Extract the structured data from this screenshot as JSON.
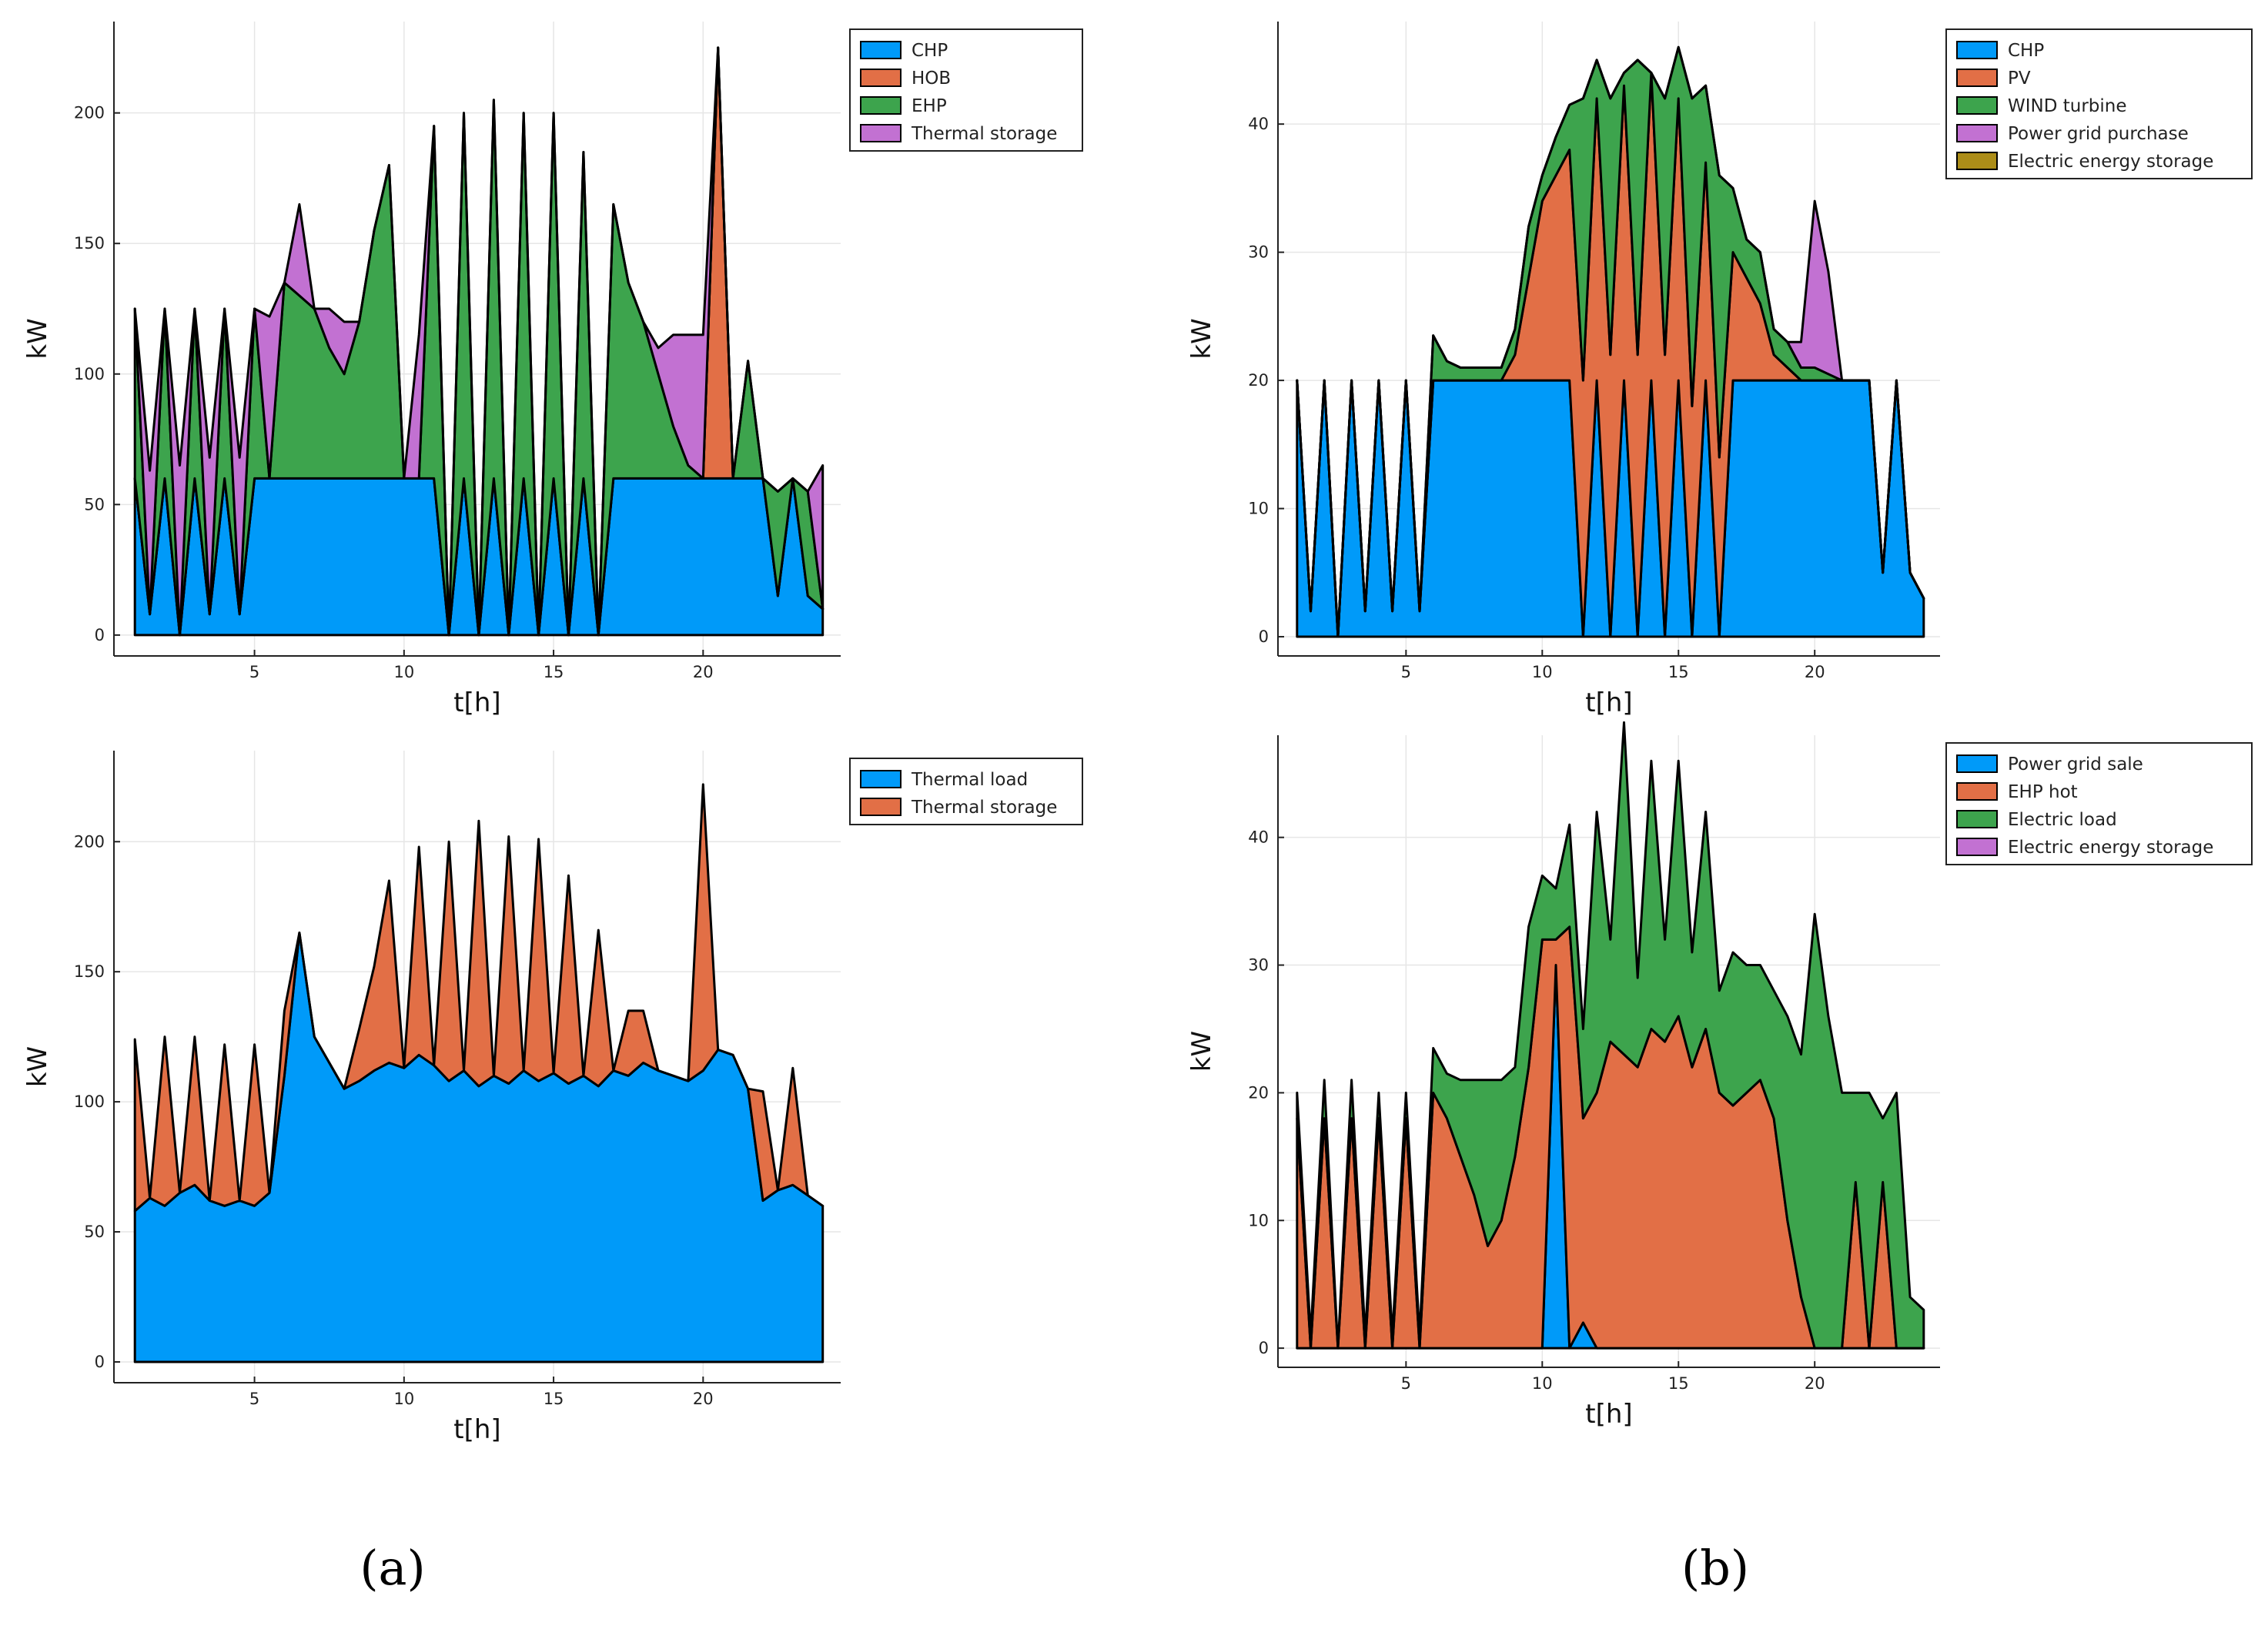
{
  "chart_data": [
    {
      "id": "a-top",
      "type": "area",
      "stacked": true,
      "title": "",
      "xlabel": "t[h]",
      "ylabel": "kW",
      "xlim": [
        0.3,
        24.6
      ],
      "ylim": [
        -8,
        235
      ],
      "xticks": [
        5,
        10,
        15,
        20
      ],
      "yticks": [
        0,
        50,
        100,
        150,
        200
      ],
      "grid": true,
      "legend_position": "top-right",
      "x": [
        1,
        1.5,
        2,
        2.5,
        3,
        3.5,
        4,
        4.5,
        5,
        5.5,
        6,
        6.5,
        7,
        7.5,
        8,
        8.5,
        9,
        9.5,
        10,
        10.5,
        11,
        11.5,
        12,
        12.5,
        13,
        13.5,
        14,
        14.5,
        15,
        15.5,
        16,
        16.5,
        17,
        17.5,
        18,
        18.5,
        19,
        19.5,
        20,
        20.5,
        21,
        21.5,
        22,
        22.5,
        23,
        23.5,
        24
      ],
      "series": [
        {
          "name": "CHP",
          "color": "#009af9",
          "values": [
            60,
            8,
            60,
            0,
            60,
            8,
            60,
            8,
            60,
            60,
            60,
            60,
            60,
            60,
            60,
            60,
            60,
            60,
            60,
            60,
            60,
            0,
            60,
            0,
            60,
            0,
            60,
            0,
            60,
            0,
            60,
            0,
            60,
            60,
            60,
            60,
            60,
            60,
            60,
            60,
            60,
            60,
            60,
            15,
            60,
            15,
            10
          ]
        },
        {
          "name": "HOB",
          "color": "#e26f46",
          "values": [
            0,
            0,
            0,
            0,
            0,
            0,
            0,
            0,
            0,
            0,
            0,
            0,
            0,
            0,
            0,
            0,
            0,
            0,
            0,
            0,
            0,
            0,
            0,
            0,
            0,
            0,
            0,
            0,
            0,
            0,
            0,
            0,
            0,
            0,
            0,
            0,
            0,
            0,
            0,
            165,
            0,
            0,
            0,
            0,
            0,
            0,
            0
          ]
        },
        {
          "name": "EHP",
          "color": "#3da44d",
          "values": [
            65,
            0,
            65,
            0,
            65,
            0,
            65,
            0,
            65,
            0,
            75,
            70,
            65,
            50,
            40,
            60,
            95,
            120,
            0,
            0,
            135,
            0,
            140,
            0,
            145,
            0,
            140,
            0,
            140,
            0,
            125,
            0,
            105,
            75,
            60,
            40,
            20,
            5,
            0,
            0,
            0,
            45,
            0,
            40,
            0,
            40,
            0
          ]
        },
        {
          "name": "Thermal storage",
          "color": "#c271d2",
          "values": [
            0,
            55,
            0,
            65,
            0,
            60,
            0,
            60,
            0,
            62,
            0,
            35,
            0,
            15,
            20,
            0,
            0,
            0,
            0,
            55,
            0,
            0,
            0,
            0,
            0,
            0,
            0,
            0,
            0,
            0,
            0,
            0,
            0,
            0,
            0,
            10,
            35,
            50,
            55,
            0,
            0,
            0,
            0,
            0,
            0,
            0,
            55
          ]
        }
      ]
    },
    {
      "id": "a-bottom",
      "type": "area",
      "stacked": true,
      "title": "",
      "xlabel": "t[h]",
      "ylabel": "kW",
      "xlim": [
        0.3,
        24.6
      ],
      "ylim": [
        -8,
        235
      ],
      "xticks": [
        5,
        10,
        15,
        20
      ],
      "yticks": [
        0,
        50,
        100,
        150,
        200
      ],
      "grid": true,
      "legend_position": "top-right",
      "x": [
        1,
        1.5,
        2,
        2.5,
        3,
        3.5,
        4,
        4.5,
        5,
        5.5,
        6,
        6.5,
        7,
        7.5,
        8,
        8.5,
        9,
        9.5,
        10,
        10.5,
        11,
        11.5,
        12,
        12.5,
        13,
        13.5,
        14,
        14.5,
        15,
        15.5,
        16,
        16.5,
        17,
        17.5,
        18,
        18.5,
        19,
        19.5,
        20,
        20.5,
        21,
        21.5,
        22,
        22.5,
        23,
        23.5,
        24
      ],
      "series": [
        {
          "name": "Thermal load",
          "color": "#009af9",
          "values": [
            58,
            63,
            60,
            65,
            68,
            62,
            60,
            62,
            60,
            65,
            110,
            165,
            125,
            115,
            105,
            108,
            112,
            115,
            113,
            118,
            114,
            108,
            112,
            106,
            110,
            107,
            112,
            108,
            111,
            107,
            110,
            106,
            112,
            110,
            115,
            112,
            110,
            108,
            112,
            120,
            118,
            105,
            62,
            66,
            68,
            64,
            60
          ]
        },
        {
          "name": "Thermal storage",
          "color": "#e26f46",
          "values": [
            66,
            0,
            65,
            0,
            57,
            0,
            62,
            0,
            62,
            0,
            25,
            0,
            0,
            0,
            0,
            20,
            40,
            70,
            0,
            80,
            0,
            92,
            0,
            102,
            0,
            95,
            0,
            93,
            0,
            80,
            0,
            60,
            0,
            25,
            20,
            0,
            0,
            0,
            110,
            0,
            0,
            0,
            42,
            0,
            45,
            0,
            0
          ]
        }
      ]
    },
    {
      "id": "b-top",
      "type": "area",
      "stacked": true,
      "title": "",
      "xlabel": "t[h]",
      "ylabel": "kW",
      "xlim": [
        0.3,
        24.6
      ],
      "ylim": [
        -1.5,
        48
      ],
      "xticks": [
        5,
        10,
        15,
        20
      ],
      "yticks": [
        0,
        10,
        20,
        30,
        40
      ],
      "grid": true,
      "legend_position": "top-right",
      "x": [
        1,
        1.5,
        2,
        2.5,
        3,
        3.5,
        4,
        4.5,
        5,
        5.5,
        6,
        6.5,
        7,
        7.5,
        8,
        8.5,
        9,
        9.5,
        10,
        10.5,
        11,
        11.5,
        12,
        12.5,
        13,
        13.5,
        14,
        14.5,
        15,
        15.5,
        16,
        16.5,
        17,
        17.5,
        18,
        18.5,
        19,
        19.5,
        20,
        20.5,
        21,
        21.5,
        22,
        22.5,
        23,
        23.5,
        24
      ],
      "series": [
        {
          "name": "CHP",
          "color": "#009af9",
          "values": [
            20,
            2,
            20,
            0,
            20,
            2,
            20,
            2,
            20,
            2,
            20,
            20,
            20,
            20,
            20,
            20,
            20,
            20,
            20,
            20,
            20,
            0,
            20,
            0,
            20,
            0,
            20,
            0,
            20,
            0,
            20,
            0,
            20,
            20,
            20,
            20,
            20,
            20,
            20,
            20,
            20,
            20,
            20,
            5,
            20,
            5,
            3
          ]
        },
        {
          "name": "PV",
          "color": "#e26f46",
          "values": [
            0,
            0,
            0,
            0,
            0,
            0,
            0,
            0,
            0,
            0,
            0,
            0,
            0,
            0,
            0,
            0,
            2,
            8,
            14,
            16,
            18,
            20,
            22,
            22,
            23,
            22,
            24,
            22,
            22,
            18,
            17,
            14,
            10,
            8,
            6,
            2,
            1,
            0,
            0,
            0,
            0,
            0,
            0,
            0,
            0,
            0,
            0
          ]
        },
        {
          "name": "WIND turbine",
          "color": "#3da44d",
          "values": [
            0,
            0,
            0,
            0,
            0,
            0,
            0,
            0,
            0,
            0,
            3.5,
            1.5,
            1,
            1,
            1,
            1,
            2,
            4,
            2,
            3,
            3.5,
            22,
            3,
            20,
            1,
            23,
            0,
            20,
            4,
            24,
            6,
            22,
            5,
            3,
            4,
            2,
            2,
            1,
            1,
            0.5,
            0,
            0,
            0,
            0,
            0,
            0,
            0
          ]
        },
        {
          "name": "Power grid purchase",
          "color": "#c271d2",
          "values": [
            0,
            0,
            0,
            0,
            0,
            0,
            0,
            0,
            0,
            0,
            0,
            0,
            0,
            0,
            0,
            0,
            0,
            0,
            0,
            0,
            0,
            0,
            0,
            0,
            0,
            0,
            0,
            0,
            0,
            0,
            0,
            0,
            0,
            0,
            0,
            0,
            0,
            2,
            13,
            8,
            0,
            0,
            0,
            0,
            0,
            0,
            0
          ]
        },
        {
          "name": "Electric energy storage",
          "color": "#ac8d18",
          "values": [
            0,
            0,
            0,
            0,
            0,
            0,
            0,
            0,
            0,
            0,
            0,
            0,
            0,
            0,
            0,
            0,
            0,
            0,
            0,
            0,
            0,
            0,
            0,
            0,
            0,
            0,
            0,
            0,
            0,
            0,
            0,
            0,
            0,
            0,
            0,
            0,
            0,
            0,
            0,
            0,
            0,
            0,
            0,
            0,
            0,
            0,
            0
          ]
        }
      ]
    },
    {
      "id": "b-bottom",
      "type": "area",
      "stacked": true,
      "title": "",
      "xlabel": "t[h]",
      "ylabel": "kW",
      "xlim": [
        0.3,
        24.6
      ],
      "ylim": [
        -1.5,
        48
      ],
      "xticks": [
        5,
        10,
        15,
        20
      ],
      "yticks": [
        0,
        10,
        20,
        30,
        40
      ],
      "grid": true,
      "legend_position": "top-right",
      "x": [
        1,
        1.5,
        2,
        2.5,
        3,
        3.5,
        4,
        4.5,
        5,
        5.5,
        6,
        6.5,
        7,
        7.5,
        8,
        8.5,
        9,
        9.5,
        10,
        10.5,
        11,
        11.5,
        12,
        12.5,
        13,
        13.5,
        14,
        14.5,
        15,
        15.5,
        16,
        16.5,
        17,
        17.5,
        18,
        18.5,
        19,
        19.5,
        20,
        20.5,
        21,
        21.5,
        22,
        22.5,
        23,
        23.5,
        24
      ],
      "series": [
        {
          "name": "Power grid sale",
          "color": "#009af9",
          "values": [
            0,
            0,
            0,
            0,
            0,
            0,
            0,
            0,
            0,
            0,
            0,
            0,
            0,
            0,
            0,
            0,
            0,
            0,
            0,
            30,
            0,
            2,
            0,
            0,
            0,
            0,
            0,
            0,
            0,
            0,
            0,
            0,
            0,
            0,
            0,
            0,
            0,
            0,
            0,
            0,
            0,
            0,
            0,
            0,
            0,
            0,
            0
          ]
        },
        {
          "name": "EHP hot",
          "color": "#e26f46",
          "values": [
            18,
            0,
            18,
            0,
            18,
            0,
            18,
            0,
            18,
            0,
            20,
            18,
            15,
            12,
            8,
            10,
            15,
            22,
            32,
            2,
            33,
            16,
            20,
            24,
            23,
            22,
            25,
            24,
            26,
            22,
            25,
            20,
            19,
            20,
            21,
            18,
            10,
            4,
            0,
            0,
            0,
            13,
            0,
            13,
            0,
            0,
            0
          ]
        },
        {
          "name": "Electric load",
          "color": "#3da44d",
          "values": [
            2,
            1,
            3,
            0,
            3,
            1,
            2,
            1,
            2,
            1,
            3.5,
            3.5,
            6,
            9,
            13,
            11,
            7,
            11,
            5,
            4,
            8,
            7,
            22,
            8,
            26,
            7,
            21,
            8,
            20,
            9,
            17,
            8,
            12,
            10,
            9,
            10,
            16,
            19,
            34,
            26,
            20,
            7,
            20,
            5,
            20,
            4,
            3
          ]
        },
        {
          "name": "Electric energy storage",
          "color": "#c271d2",
          "values": [
            0,
            0,
            0,
            0,
            0,
            0,
            0,
            0,
            0,
            0,
            0,
            0,
            0,
            0,
            0,
            0,
            0,
            0,
            0,
            0,
            0,
            0,
            0,
            0,
            0,
            0,
            0,
            0,
            0,
            0,
            0,
            0,
            0,
            0,
            0,
            0,
            0,
            0,
            0,
            0,
            0,
            0,
            0,
            0,
            0,
            0,
            0
          ]
        }
      ]
    }
  ],
  "captions": {
    "a": "(a)",
    "b": "(b)"
  }
}
